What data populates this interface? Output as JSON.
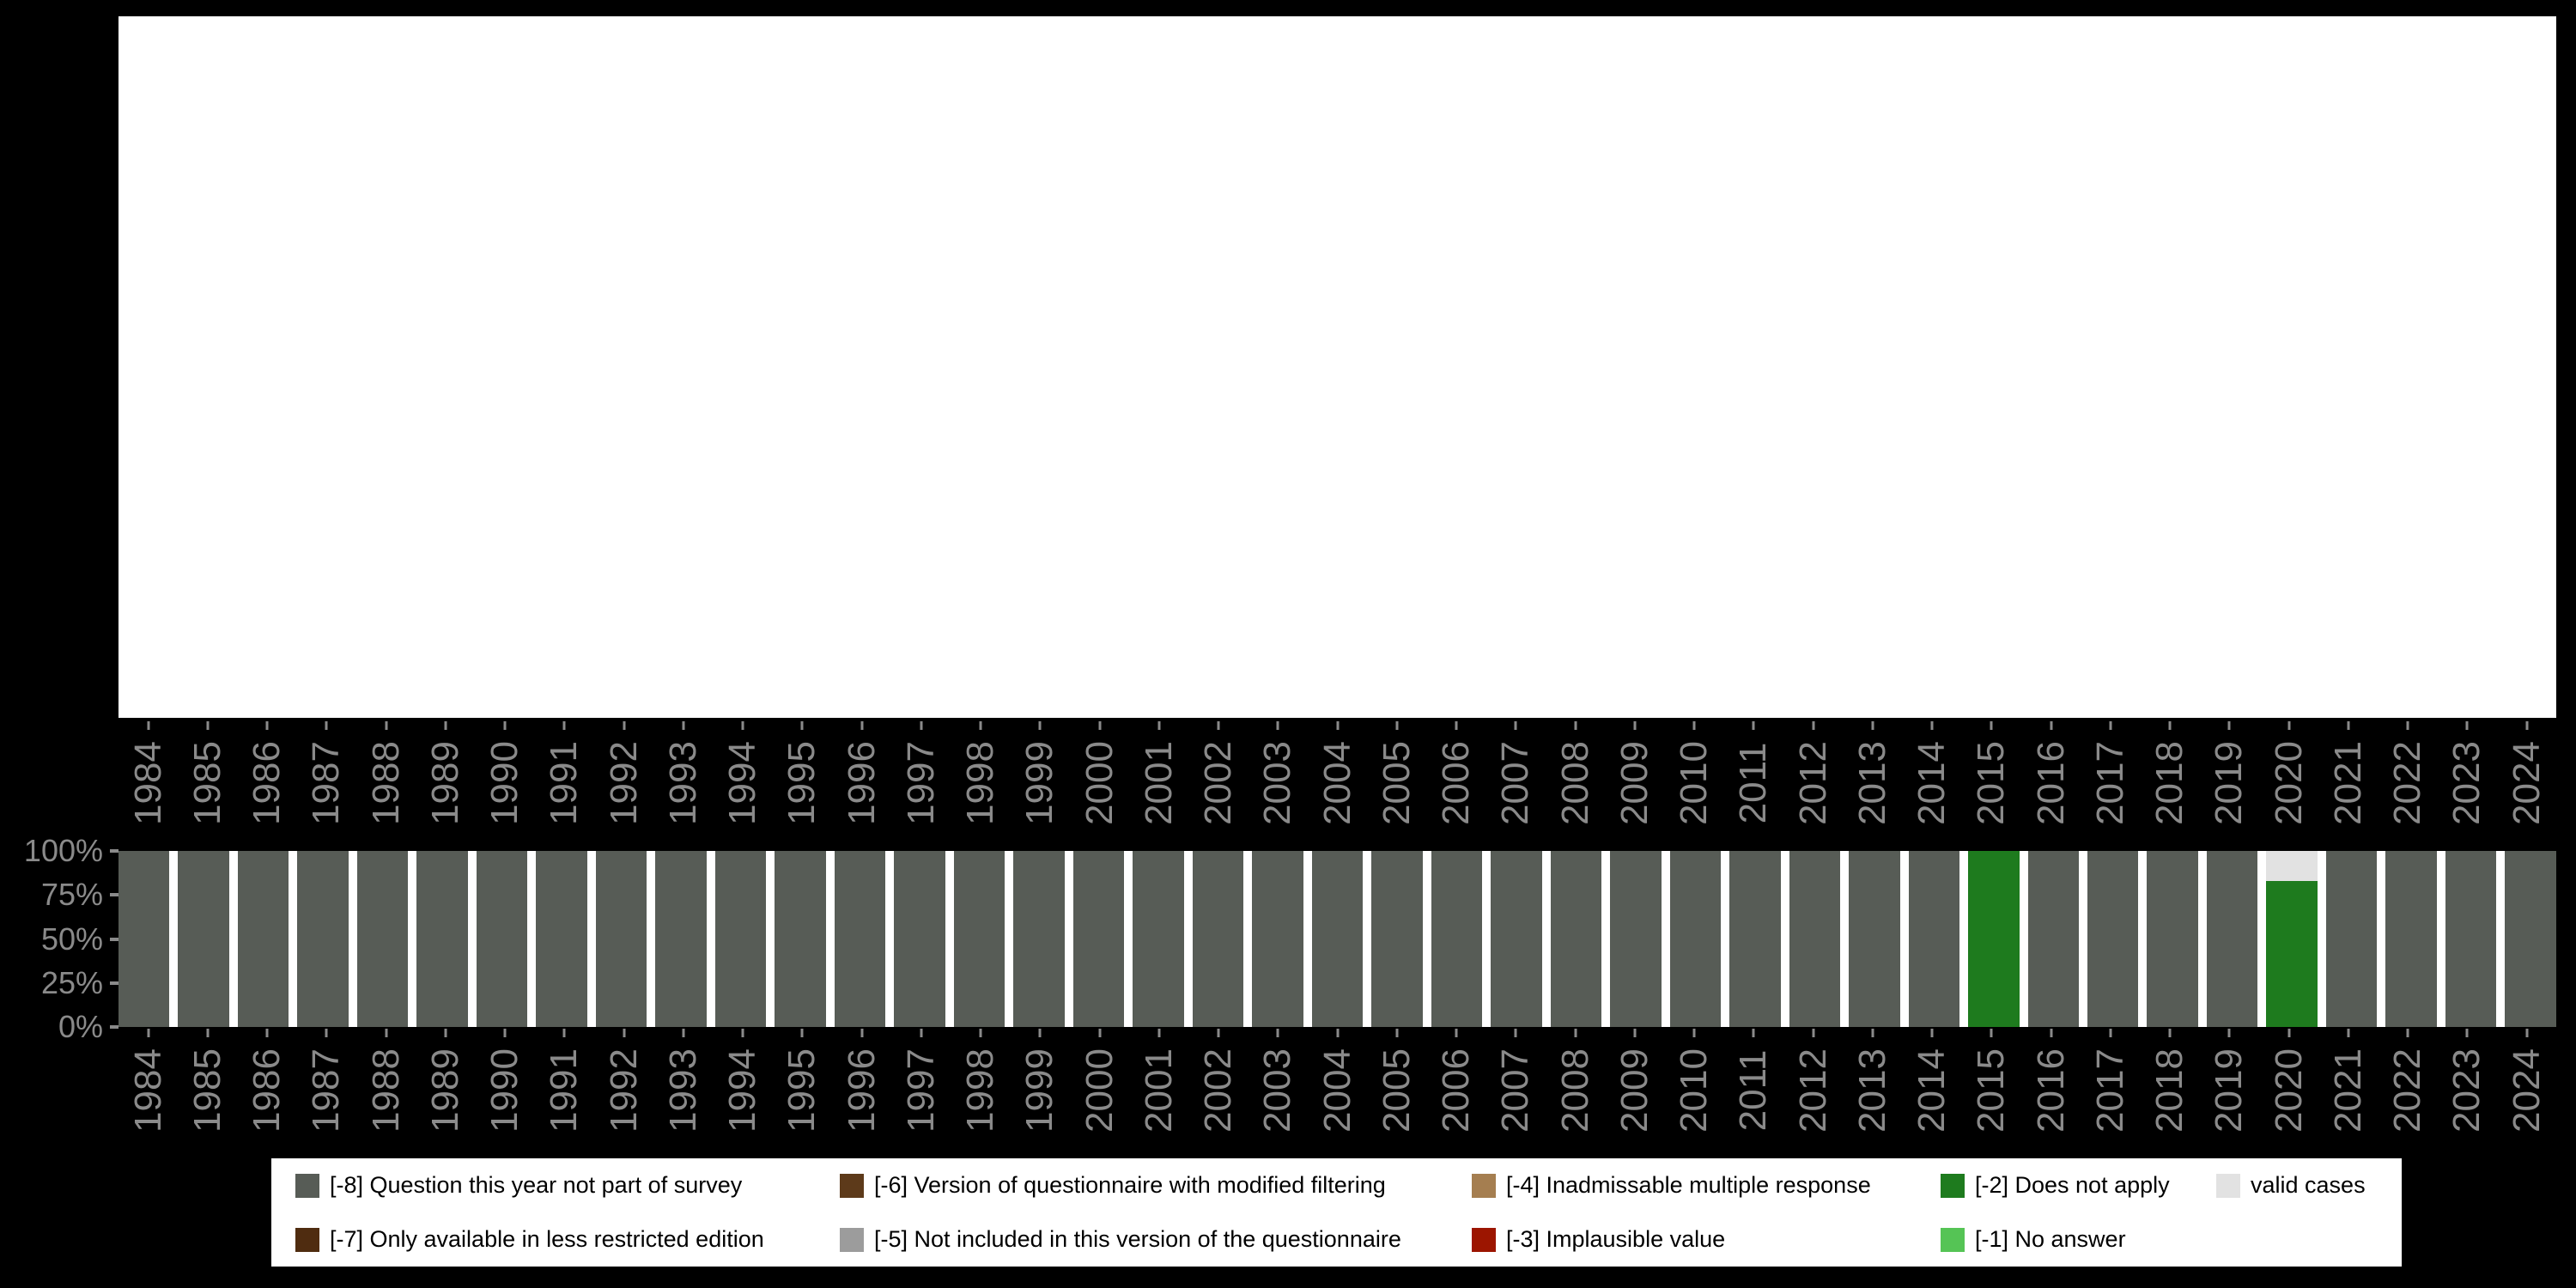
{
  "page": {
    "background": "#000000"
  },
  "bottom_chart": {
    "yticks": [
      {
        "label": "100%",
        "value": 100
      },
      {
        "label": "75%",
        "value": 75
      },
      {
        "label": "50%",
        "value": 50
      },
      {
        "label": "25%",
        "value": 25
      },
      {
        "label": "0%",
        "value": 0
      }
    ]
  },
  "legend": {
    "rows": [
      [
        {
          "code": "-8",
          "label": "[-8] Question this year not part of survey",
          "color": "#575c56"
        },
        {
          "code": "-6",
          "label": "[-6] Version of questionnaire with modified filtering",
          "color": "#5d3a1a"
        },
        {
          "code": "-4",
          "label": "[-4] Inadmissable multiple response",
          "color": "#a57e50"
        },
        {
          "code": "-2",
          "label": "[-2] Does not apply",
          "color": "#1e7b1e"
        },
        {
          "code": "valid",
          "label": "valid cases",
          "color": "#e2e2e2"
        }
      ],
      [
        {
          "code": "-7",
          "label": "[-7] Only available in less restricted edition",
          "color": "#4f2c10"
        },
        {
          "code": "-5",
          "label": "[-5] Not included in this version of the questionnaire",
          "color": "#9c9c9c"
        },
        {
          "code": "-3",
          "label": "[-3] Implausible value",
          "color": "#9c1500"
        },
        {
          "code": "-1",
          "label": "[-1] No answer",
          "color": "#55c455"
        }
      ]
    ]
  },
  "chart_data": {
    "type": "bar",
    "subtype": "stacked-percent",
    "title": "",
    "xlabel": "",
    "ylabel": "",
    "ylim": [
      0,
      100
    ],
    "yticks": [
      0,
      25,
      50,
      75,
      100
    ],
    "grid": false,
    "legend_position": "bottom",
    "categories": [
      "1984",
      "1985",
      "1986",
      "1987",
      "1988",
      "1989",
      "1990",
      "1991",
      "1992",
      "1993",
      "1994",
      "1995",
      "1996",
      "1997",
      "1998",
      "1999",
      "2000",
      "2001",
      "2002",
      "2003",
      "2004",
      "2005",
      "2006",
      "2007",
      "2008",
      "2009",
      "2010",
      "2011",
      "2012",
      "2013",
      "2014",
      "2015",
      "2016",
      "2017",
      "2018",
      "2019",
      "2020",
      "2021",
      "2022",
      "2023",
      "2024"
    ],
    "series": [
      {
        "name": "[-8] Question this year not part of survey",
        "color": "#575c56",
        "values": [
          100,
          100,
          100,
          100,
          100,
          100,
          100,
          100,
          100,
          100,
          100,
          100,
          100,
          100,
          100,
          100,
          100,
          100,
          100,
          100,
          100,
          100,
          100,
          100,
          100,
          100,
          100,
          100,
          100,
          100,
          100,
          0,
          100,
          100,
          100,
          100,
          0,
          100,
          100,
          100,
          100
        ]
      },
      {
        "name": "[-2] Does not apply",
        "color": "#1e7b1e",
        "values": [
          0,
          0,
          0,
          0,
          0,
          0,
          0,
          0,
          0,
          0,
          0,
          0,
          0,
          0,
          0,
          0,
          0,
          0,
          0,
          0,
          0,
          0,
          0,
          0,
          0,
          0,
          0,
          0,
          0,
          0,
          0,
          100,
          0,
          0,
          0,
          0,
          83,
          0,
          0,
          0,
          0
        ]
      },
      {
        "name": "valid cases",
        "color": "#e2e2e2",
        "values": [
          0,
          0,
          0,
          0,
          0,
          0,
          0,
          0,
          0,
          0,
          0,
          0,
          0,
          0,
          0,
          0,
          0,
          0,
          0,
          0,
          0,
          0,
          0,
          0,
          0,
          0,
          0,
          0,
          0,
          0,
          0,
          0,
          0,
          0,
          0,
          0,
          17,
          0,
          0,
          0,
          0
        ]
      }
    ],
    "stack_order_bottom_to_top": [
      "[-8] Question this year not part of survey",
      "[-2] Does not apply",
      "valid cases"
    ]
  }
}
